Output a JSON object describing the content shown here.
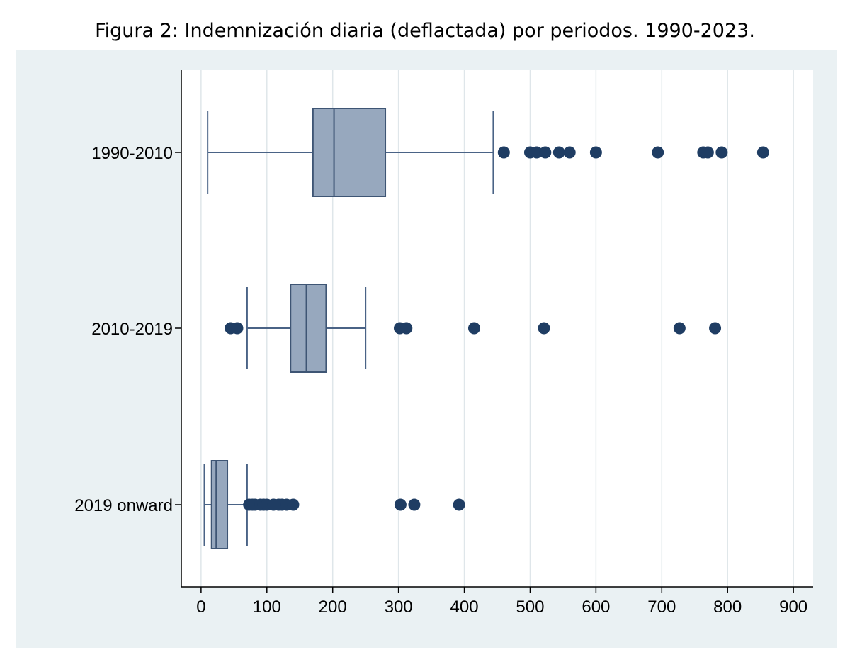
{
  "figure_title": "Figura 2: Indemnización diaria (deflactada) por periodos. 1990-2023.",
  "colors": {
    "box_fill": "#97a8be",
    "box_stroke": "#3e5574",
    "outlier": "#1f3d63",
    "whisker": "#4a6386",
    "grid": "#dfe6ea",
    "panel": "#eaf1f3",
    "plot_bg": "#ffffff"
  },
  "chart_data": {
    "type": "boxplot",
    "orientation": "horizontal",
    "title": "Figura 2: Indemnización diaria (deflactada) por periodos. 1990-2023.",
    "xlabel": "",
    "ylabel": "",
    "xlim": [
      -30,
      930
    ],
    "xticks": [
      0,
      100,
      200,
      300,
      400,
      500,
      600,
      700,
      800,
      900
    ],
    "grid": true,
    "categories": [
      "1990-2010",
      "2010-2019",
      "2019 onward"
    ],
    "boxes": [
      {
        "label": "1990-2010",
        "whisker_low": 10,
        "q1": 170,
        "median": 202,
        "q3": 280,
        "whisker_high": 444,
        "outliers": [
          460,
          500,
          510,
          523,
          544,
          560,
          600,
          694,
          763,
          770,
          791,
          854
        ]
      },
      {
        "label": "2010-2019",
        "whisker_low": 70,
        "q1": 136,
        "median": 160,
        "q3": 190,
        "whisker_high": 250,
        "outliers": [
          45,
          55,
          302,
          312,
          415,
          521,
          727,
          781
        ]
      },
      {
        "label": "2019 onward",
        "whisker_low": 5,
        "q1": 16,
        "median": 23,
        "q3": 40,
        "whisker_high": 70,
        "outliers": [
          73,
          78,
          82,
          90,
          95,
          100,
          110,
          118,
          123,
          130,
          140,
          303,
          324,
          392
        ]
      }
    ]
  }
}
